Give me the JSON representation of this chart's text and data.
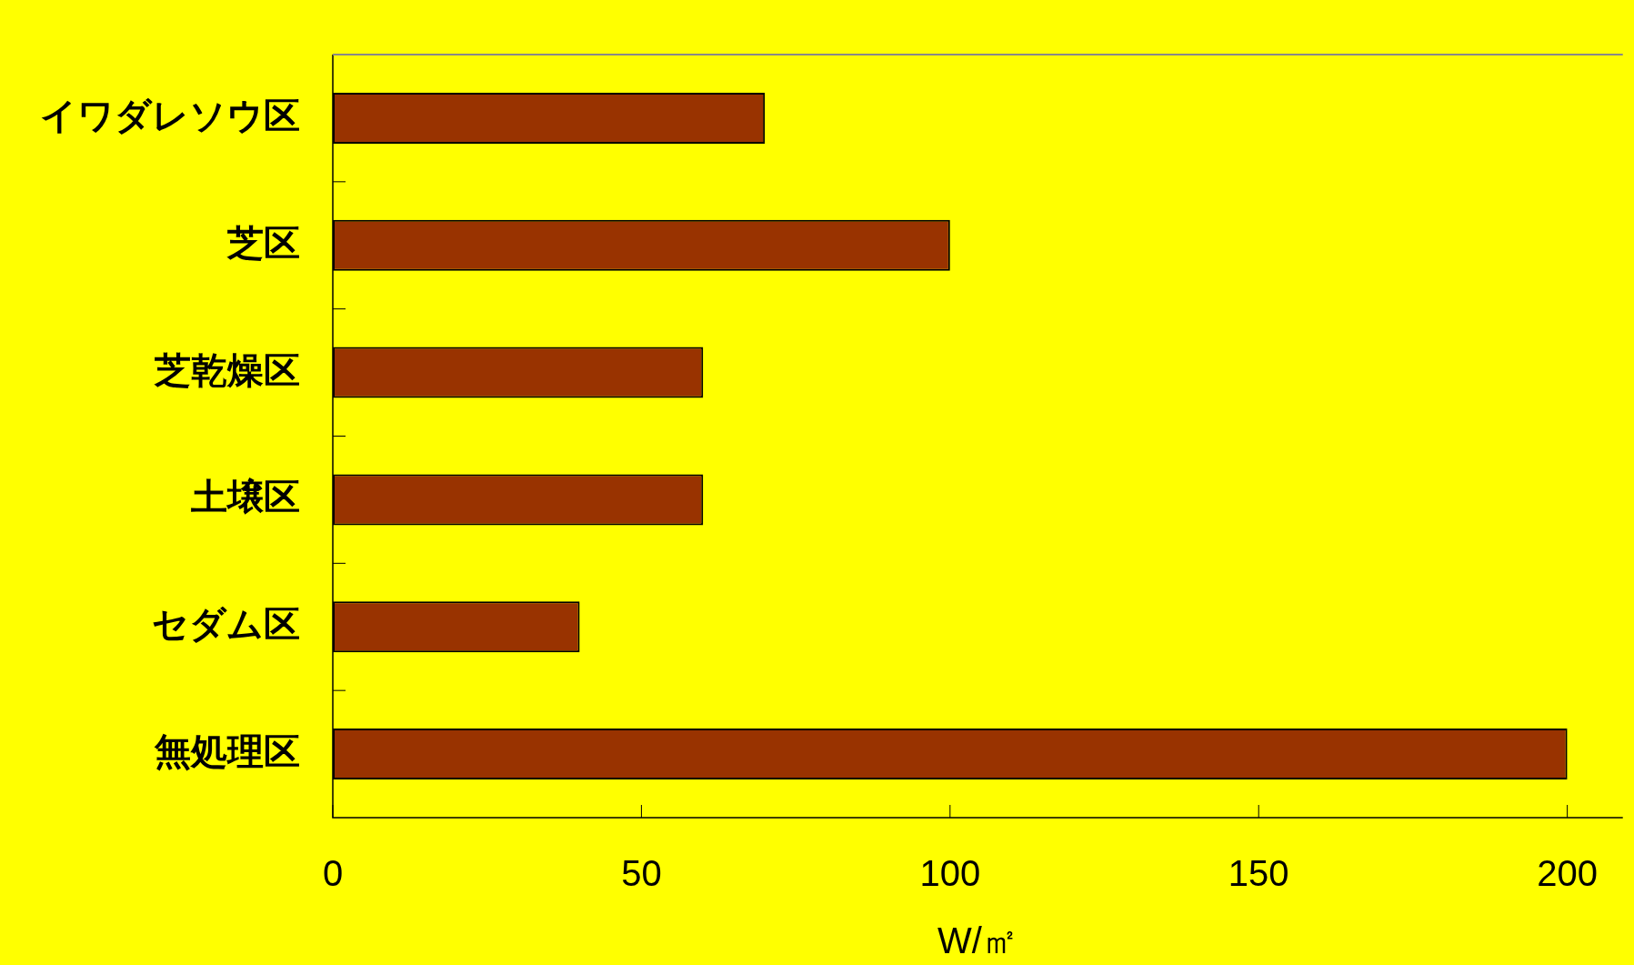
{
  "chart_data": {
    "type": "bar",
    "orientation": "horizontal",
    "categories": [
      "イワダレソウ区",
      "芝区",
      "芝乾燥区",
      "土壌区",
      "セダム区",
      "無処理区"
    ],
    "values": [
      70,
      100,
      60,
      60,
      40,
      200
    ],
    "color": "#993300",
    "xlabel": "W/㎡",
    "xlim": [
      0,
      209
    ],
    "xticks": [
      0,
      50,
      100,
      150,
      200
    ],
    "grid": false,
    "legend": false
  }
}
